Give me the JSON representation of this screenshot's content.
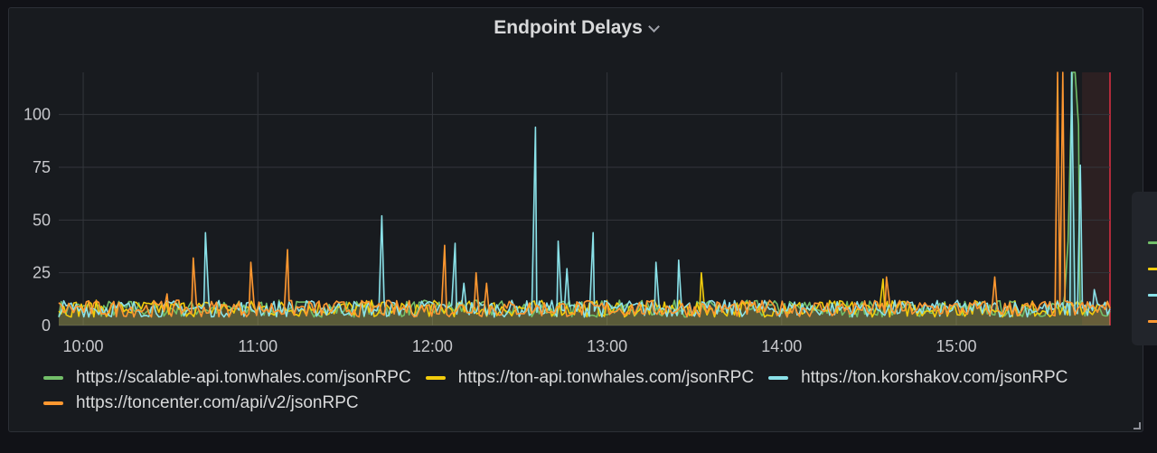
{
  "panel": {
    "title": "Endpoint Delays"
  },
  "colors": {
    "background": "#111217",
    "panel": "#181b1f",
    "grid": "#33363c",
    "now_line": "#e02f44"
  },
  "icons": {
    "title_menu": "chevron-down-icon",
    "resize": "resize-handle-icon"
  },
  "chart_data": {
    "type": "line",
    "title": "Endpoint Delays",
    "xlabel": "",
    "ylabel": "",
    "x_unit": "time of day (hours)",
    "xlim": [
      9.86,
      15.88
    ],
    "ylim": [
      0,
      120
    ],
    "x_ticks": [
      {
        "value": 10,
        "label": "10:00"
      },
      {
        "value": 11,
        "label": "11:00"
      },
      {
        "value": 12,
        "label": "12:00"
      },
      {
        "value": 13,
        "label": "13:00"
      },
      {
        "value": 14,
        "label": "14:00"
      },
      {
        "value": 15,
        "label": "15:00"
      }
    ],
    "y_ticks": [
      0,
      25,
      50,
      75,
      100
    ],
    "grid": true,
    "legend_position": "bottom",
    "fill_area": true,
    "baseline_range": [
      4,
      12
    ],
    "highlight_region": [
      15.72,
      15.88
    ],
    "series": [
      {
        "name": "https://scalable-api.tonwhales.com/jsonRPC",
        "color": "#73bf69",
        "points": [
          [
            15.62,
            14
          ],
          [
            15.64,
            40
          ],
          [
            15.655,
            90
          ],
          [
            15.665,
            125
          ],
          [
            15.68,
            125
          ],
          [
            15.7,
            95
          ],
          [
            15.72,
            12
          ]
        ]
      },
      {
        "name": "https://ton-api.tonwhales.com/jsonRPC",
        "color": "#f2cc0c",
        "points": [
          [
            13.54,
            25
          ],
          [
            14.58,
            22
          ]
        ]
      },
      {
        "name": "https://ton.korshakov.com/jsonRPC",
        "color": "#8ae1e8",
        "points": [
          [
            10.7,
            44
          ],
          [
            11.71,
            52
          ],
          [
            12.13,
            39
          ],
          [
            12.18,
            20
          ],
          [
            12.59,
            94
          ],
          [
            12.72,
            40
          ],
          [
            12.77,
            27
          ],
          [
            12.92,
            44
          ],
          [
            13.28,
            30
          ],
          [
            13.41,
            31
          ],
          [
            15.66,
            125
          ],
          [
            15.71,
            76
          ],
          [
            15.79,
            17
          ]
        ]
      },
      {
        "name": "https://toncenter.com/api/v2/jsonRPC",
        "color": "#ff9830",
        "points": [
          [
            10.63,
            32
          ],
          [
            10.48,
            15
          ],
          [
            10.96,
            30
          ],
          [
            11.17,
            36
          ],
          [
            12.07,
            38
          ],
          [
            12.25,
            25
          ],
          [
            12.31,
            20
          ],
          [
            14.6,
            23
          ],
          [
            15.22,
            23
          ],
          [
            15.58,
            125
          ],
          [
            15.61,
            125
          ]
        ]
      }
    ]
  }
}
